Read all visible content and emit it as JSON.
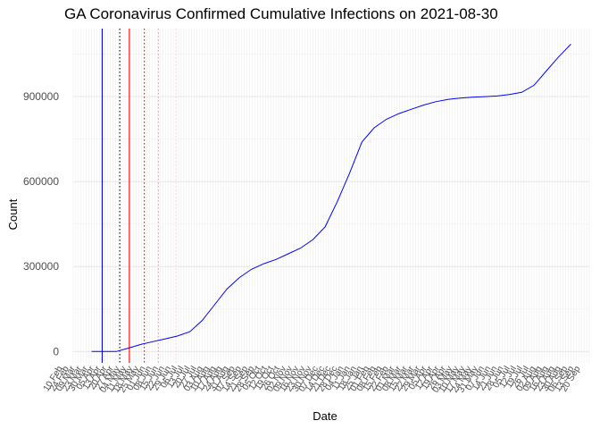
{
  "chart_data": {
    "type": "line",
    "title": "GA Coronavirus Confirmed Cumulative Infections on 2021-08-30",
    "xlabel": "Date",
    "ylabel": "Count",
    "ylim": [
      -40000,
      1140000
    ],
    "y_ticks": [
      0,
      300000,
      600000,
      900000
    ],
    "y_tick_labels": [
      "0",
      "300000",
      "600000",
      "900000"
    ],
    "grid": true,
    "x_tick_labels": [
      "10 Feb",
      "24 Feb",
      "09 Mar",
      "23 Mar",
      "30 Mar",
      "05 Apr",
      "13 Apr",
      "20 Apr",
      "27 Apr",
      "04 May",
      "11 May",
      "18 May",
      "25 May",
      "01 Jun",
      "08 Jun",
      "15 Jun",
      "22 Jun",
      "29 Jun",
      "06 Jul",
      "13 Jul",
      "20 Jul",
      "27 Jul",
      "03 Aug",
      "10 Aug",
      "17 Aug",
      "24 Aug",
      "31 Aug",
      "07 Sep",
      "14 Sep",
      "21 Sep",
      "28 Sep",
      "05 Oct",
      "12 Oct",
      "19 Oct",
      "26 Oct",
      "02 Nov",
      "09 Nov",
      "16 Nov",
      "23 Nov",
      "30 Nov",
      "07 Dec",
      "14 Dec",
      "21 Dec",
      "28 Dec",
      "04 Jan",
      "11 Jan",
      "18 Jan",
      "25 Jan",
      "01 Feb",
      "08 Feb",
      "15 Feb",
      "22 Feb",
      "01 Mar",
      "08 Mar",
      "15 Mar",
      "22 Mar",
      "29 Mar",
      "05 Apr",
      "12 Apr",
      "19 Apr",
      "26 Apr",
      "03 May",
      "10 May",
      "17 May",
      "24 May",
      "31 May",
      "07 Jun",
      "14 Jun",
      "21 Jun",
      "28 Jun",
      "05 Jul",
      "12 Jul",
      "19 Jul",
      "26 Jul",
      "02 Aug",
      "09 Aug",
      "16 Aug",
      "23 Aug",
      "30 Aug",
      "06 Sep",
      "13 Sep",
      "20 Sep"
    ],
    "series": [
      {
        "color": "#0000ff",
        "x": [
          "2020-03-02",
          "2020-03-16",
          "2020-03-30",
          "2020-04-13",
          "2020-04-27",
          "2020-05-11",
          "2020-05-25",
          "2020-06-08",
          "2020-06-22",
          "2020-07-06",
          "2020-07-20",
          "2020-08-03",
          "2020-08-17",
          "2020-08-31",
          "2020-09-14",
          "2020-09-28",
          "2020-10-12",
          "2020-10-26",
          "2020-11-09",
          "2020-11-23",
          "2020-12-07",
          "2020-12-21",
          "2021-01-04",
          "2021-01-18",
          "2021-02-01",
          "2021-02-15",
          "2021-03-01",
          "2021-03-15",
          "2021-03-29",
          "2021-04-12",
          "2021-04-26",
          "2021-05-10",
          "2021-05-24",
          "2021-06-07",
          "2021-06-21",
          "2021-07-05",
          "2021-07-19",
          "2021-08-02",
          "2021-08-16",
          "2021-08-30"
        ],
        "values": [
          0,
          0,
          0,
          12000,
          25000,
          35000,
          45000,
          55000,
          70000,
          110000,
          165000,
          220000,
          260000,
          290000,
          310000,
          325000,
          345000,
          365000,
          395000,
          440000,
          530000,
          630000,
          740000,
          790000,
          820000,
          840000,
          855000,
          870000,
          882000,
          890000,
          895000,
          898000,
          900000,
          902000,
          907000,
          915000,
          940000,
          990000,
          1040000,
          1085000
        ]
      }
    ],
    "vertical_lines": [
      {
        "date": "2020-03-14",
        "color": "#0000ff",
        "style": "solid"
      },
      {
        "date": "2020-04-03",
        "color": "#000000",
        "style": "dotted"
      },
      {
        "date": "2020-04-14",
        "color": "#ff0000",
        "style": "solid"
      },
      {
        "date": "2020-05-01",
        "color": "#ff0000",
        "style": "dotted"
      },
      {
        "date": "2020-05-17",
        "color": "#ff9999",
        "style": "dotted"
      },
      {
        "date": "2020-06-06",
        "color": "#ffcccc",
        "style": "dotted"
      }
    ],
    "x_start": "2020-02-10",
    "x_end": "2021-09-20"
  }
}
